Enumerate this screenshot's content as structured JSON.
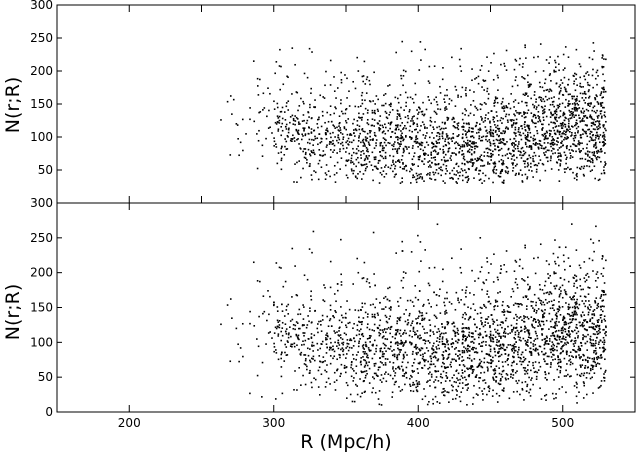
{
  "chart_data": [
    {
      "type": "scatter",
      "panel": "top",
      "xlabel": "",
      "ylabel": "N(r;R)",
      "xlim": [
        150,
        550
      ],
      "ylim": [
        0,
        300
      ],
      "x_ticks": [
        200,
        250,
        300,
        350,
        400,
        450,
        500
      ],
      "y_ticks": [
        50,
        100,
        150,
        200,
        250,
        300
      ],
      "y_tick_labels": [
        "50",
        "100",
        "150",
        "200",
        "250",
        "300"
      ],
      "points_x_range": [
        260,
        530
      ],
      "points_y_range": [
        30,
        245
      ],
      "estimated_point_count": 2500,
      "density_note": "sparse near R=260-300, dense from R=330 to 530, band centered near N=120"
    },
    {
      "type": "scatter",
      "panel": "bottom",
      "xlabel": "R (Mpc/h)",
      "ylabel": "N(r;R)",
      "xlim": [
        150,
        550
      ],
      "ylim": [
        0,
        300
      ],
      "x_ticks": [
        200,
        300,
        400,
        500
      ],
      "x_tick_labels": [
        "200",
        "300",
        "400",
        "500"
      ],
      "y_ticks": [
        0,
        50,
        100,
        150,
        200,
        250,
        300
      ],
      "y_tick_labels": [
        "0",
        "50",
        "100",
        "150",
        "200",
        "250",
        "300"
      ],
      "points_x_range": [
        260,
        530
      ],
      "points_y_range": [
        10,
        270
      ],
      "estimated_point_count": 2600,
      "density_note": "sparse near R=260-300, dense from R=330 to 530, band centered near N=120"
    }
  ],
  "colors": {
    "points": "#000000",
    "axes": "#000000",
    "background": "#ffffff"
  }
}
